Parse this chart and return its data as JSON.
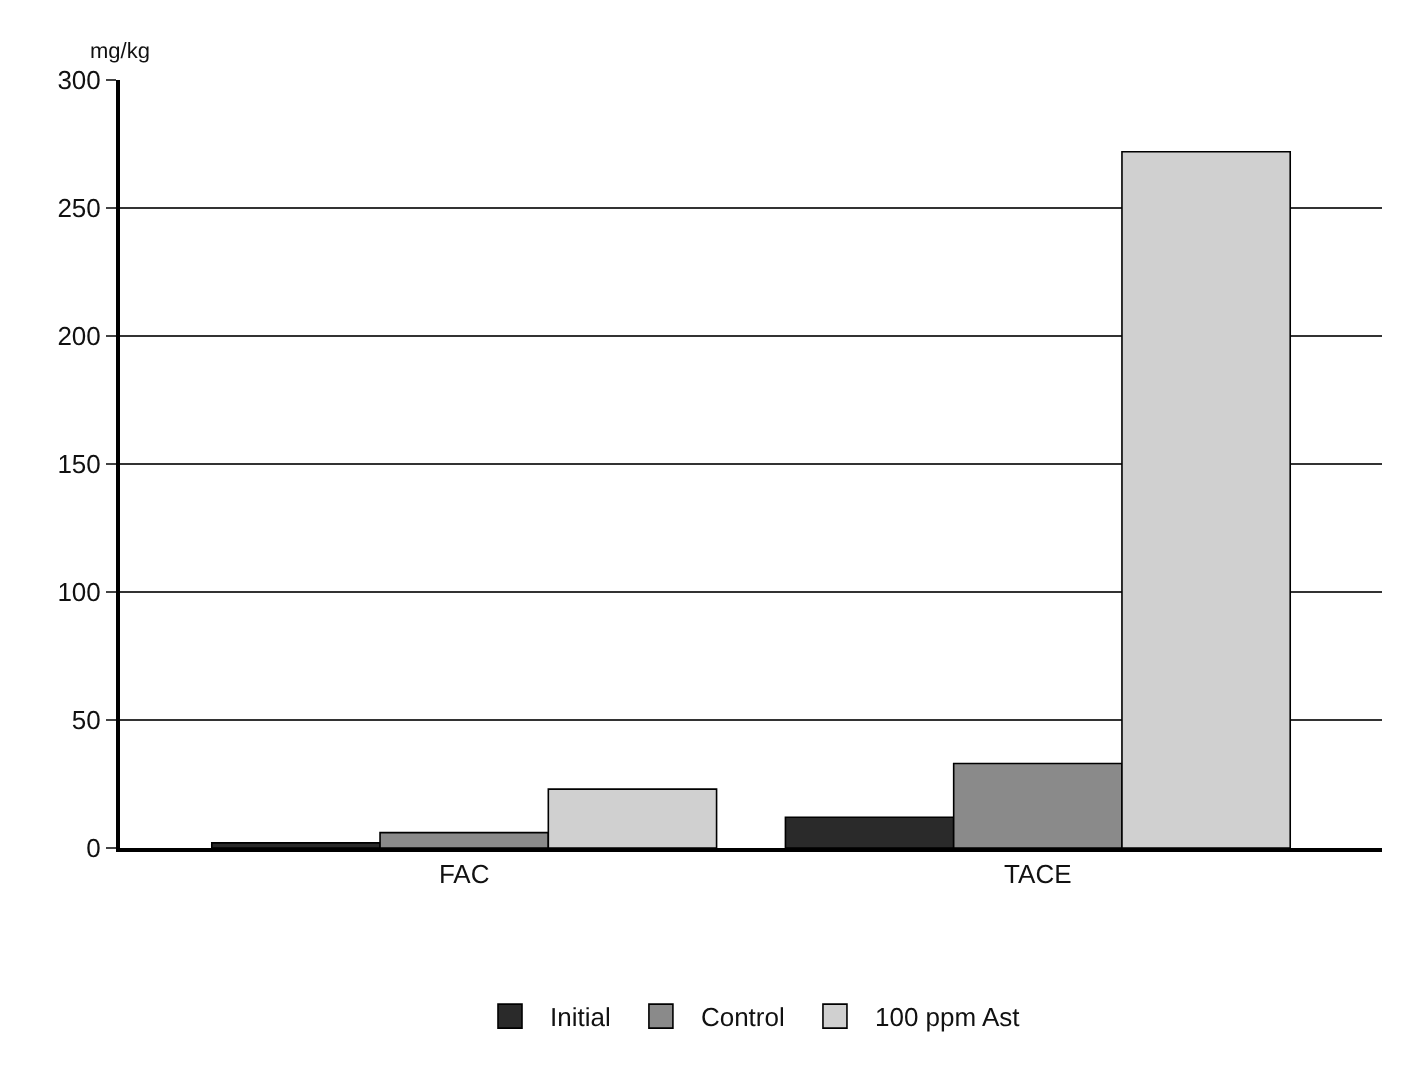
{
  "chart_data": {
    "type": "bar",
    "ylabel": "mg/kg",
    "categories": [
      "FAC",
      "TACE"
    ],
    "series": [
      {
        "name": "Initial",
        "color": "#2a2a2a",
        "values": [
          2,
          12
        ]
      },
      {
        "name": "Control",
        "color": "#8a8a8a",
        "values": [
          6,
          33
        ]
      },
      {
        "name": "100 ppm Ast",
        "color": "#d0d0d0",
        "values": [
          23,
          272
        ]
      }
    ],
    "ylim": [
      0,
      300
    ],
    "yticks": [
      0,
      50,
      100,
      150,
      200,
      250,
      300
    ],
    "grid": "y",
    "legend": "bottom"
  }
}
